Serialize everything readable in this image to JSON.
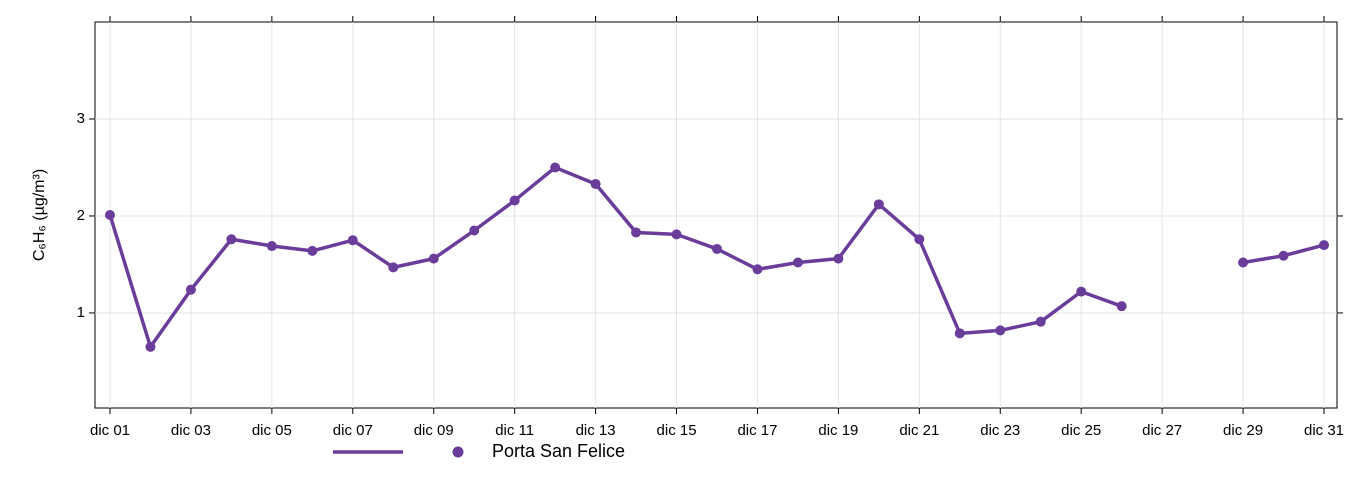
{
  "chart_data": {
    "type": "line",
    "ylabel": "C₆H₆ (µg/m³)",
    "categories": [
      "dic 01",
      null,
      "dic 03",
      null,
      "dic 05",
      null,
      "dic 07",
      null,
      "dic 09",
      null,
      "dic 11",
      null,
      "dic 13",
      null,
      "dic 15",
      null,
      "dic 17",
      null,
      "dic 19",
      null,
      "dic 21",
      null,
      "dic 23",
      null,
      "dic 25",
      null,
      "dic 27",
      null,
      "dic 29",
      null,
      "dic 31"
    ],
    "series": [
      {
        "name": "Porta San Felice",
        "color": "#6a3d9a",
        "values": [
          2.01,
          0.65,
          1.24,
          1.76,
          1.69,
          1.64,
          1.75,
          1.47,
          1.56,
          1.85,
          2.16,
          2.5,
          2.33,
          1.83,
          1.81,
          1.66,
          1.45,
          1.52,
          1.56,
          2.12,
          1.76,
          0.79,
          0.82,
          0.91,
          1.22,
          1.07,
          null,
          null,
          1.52,
          1.59,
          1.7
        ]
      }
    ],
    "ylim": [
      0.02,
      4.0
    ],
    "yticks": [
      1,
      2,
      3
    ],
    "grid": true,
    "legend": "bottom"
  }
}
